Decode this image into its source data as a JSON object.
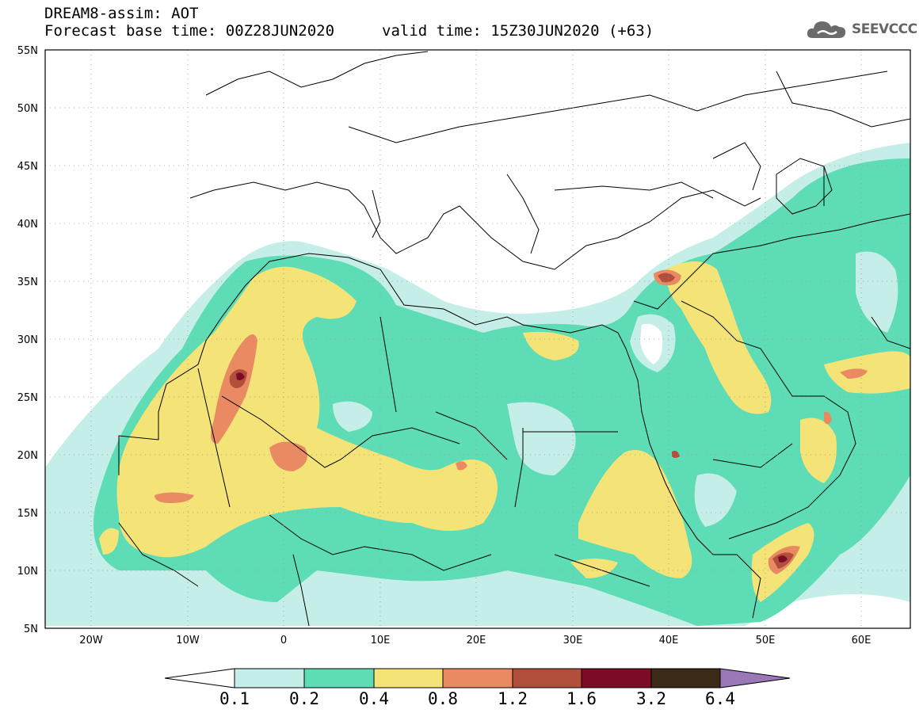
{
  "header": {
    "title_line1": "DREAM8-assim: AOT",
    "title_line2": "Forecast base time: 00Z28JUN2020",
    "valid_time": "valid time: 15Z30JUN2020 (+63)"
  },
  "logo": {
    "text": "SEEVCCC",
    "icon": "cloud-icon"
  },
  "map": {
    "lon_range": [
      -25,
      65
    ],
    "lat_range": [
      5,
      55
    ],
    "lat_ticks": [
      "5N",
      "10N",
      "15N",
      "20N",
      "25N",
      "30N",
      "35N",
      "40N",
      "45N",
      "50N",
      "55N"
    ],
    "lon_ticks": [
      "20W",
      "10W",
      "0",
      "10E",
      "20E",
      "30E",
      "40E",
      "50E",
      "60E"
    ]
  },
  "colorbar": {
    "labels": [
      "0.1",
      "0.2",
      "0.4",
      "0.8",
      "1.2",
      "1.6",
      "3.2",
      "6.4"
    ],
    "colors": {
      "c1": "#c6eee8",
      "c2": "#5ddcb6",
      "c3": "#f4e477",
      "c4": "#e98a62",
      "c5": "#b24f3c",
      "c6": "#7c0c25",
      "c7": "#3a2a16",
      "c8": "#9a78b8"
    }
  }
}
